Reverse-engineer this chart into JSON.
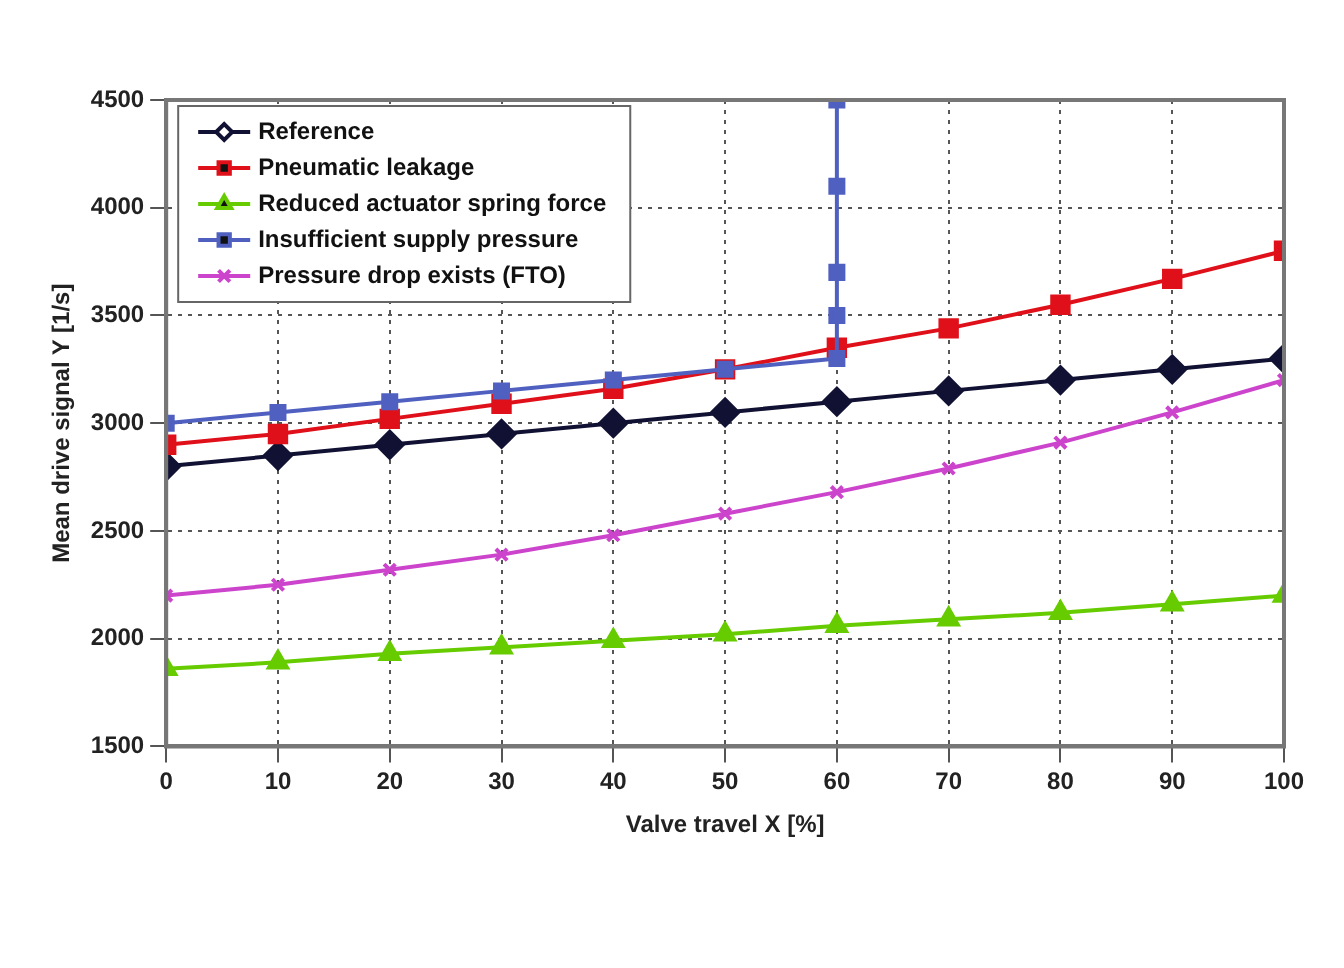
{
  "chart_data": {
    "type": "line",
    "xlabel": "Valve travel X [%]",
    "ylabel": "Mean drive signal Y [1/s]",
    "x": [
      0,
      10,
      20,
      30,
      40,
      50,
      60,
      70,
      80,
      90,
      100
    ],
    "xlim": [
      0,
      100
    ],
    "xticks": [
      0,
      10,
      20,
      30,
      40,
      50,
      60,
      70,
      80,
      90,
      100
    ],
    "ylim": [
      1500,
      4500
    ],
    "yticks": [
      1500,
      2000,
      2500,
      3000,
      3500,
      4000,
      4500
    ],
    "grid": true,
    "legend": "top left",
    "series": [
      {
        "name": "Reference",
        "color": "#111133",
        "marker": "diamond",
        "values": [
          2800,
          2850,
          2900,
          2950,
          3000,
          3050,
          3100,
          3150,
          3200,
          3250,
          3300
        ]
      },
      {
        "name": "Pneumatic leakage",
        "color": "#e0101a",
        "marker": "square",
        "values": [
          2900,
          2950,
          3020,
          3090,
          3160,
          3250,
          3350,
          3440,
          3550,
          3670,
          3800
        ]
      },
      {
        "name": "Reduced actuator spring force",
        "color": "#66cc00",
        "marker": "triangle",
        "values": [
          1860,
          1890,
          1930,
          1960,
          1990,
          2020,
          2060,
          2090,
          2120,
          2160,
          2200
        ]
      },
      {
        "name": "Insufficient supply pressure",
        "color": "#5060c0",
        "marker": "square",
        "x": [
          0,
          10,
          20,
          30,
          40,
          50,
          60,
          60,
          60,
          60,
          60
        ],
        "values": [
          3000,
          3050,
          3100,
          3150,
          3200,
          3250,
          3300,
          3500,
          3700,
          4100,
          4500
        ]
      },
      {
        "name": "Pressure drop exists (FTO)",
        "color": "#cc44cc",
        "marker": "cross",
        "values": [
          2200,
          2250,
          2320,
          2390,
          2480,
          2580,
          2680,
          2790,
          2910,
          3050,
          3200
        ]
      }
    ]
  }
}
